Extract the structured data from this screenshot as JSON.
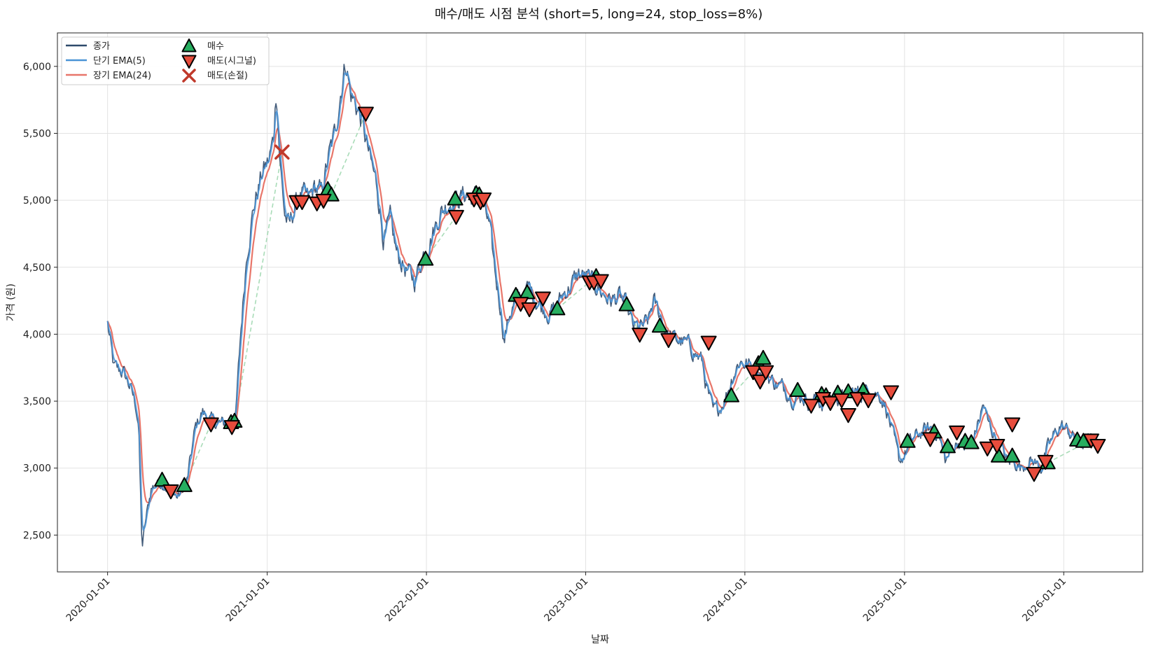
{
  "chart_data": {
    "type": "line",
    "title": "매수/매도 시점 분석 (short=5, long=24, stop_loss=8%)",
    "xlabel": "날짜",
    "ylabel": "가격 (원)",
    "x_range": [
      "2019-09-08",
      "2026-07-01"
    ],
    "ylim": [
      2225,
      6250
    ],
    "y_ticks": [
      2500,
      3000,
      3500,
      4000,
      4500,
      5000,
      5500,
      6000
    ],
    "y_tick_labels": [
      "2,500",
      "3,000",
      "3,500",
      "4,000",
      "4,500",
      "5,000",
      "5,500",
      "6,000"
    ],
    "x_ticks": [
      "2020-01-01",
      "2021-01-01",
      "2022-01-01",
      "2023-01-01",
      "2024-01-01",
      "2025-01-01",
      "2026-01-01"
    ],
    "grid": true,
    "legend_position": "top-left",
    "legend": [
      "종가",
      "단기 EMA(5)",
      "장기 EMA(24)",
      "매수",
      "매도(시그널)",
      "매도(손절)"
    ],
    "colors": {
      "close": "#2f4a6b",
      "ema_short": "#4a94d6",
      "ema_long": "#e8766a",
      "buy": "#27ae60",
      "sell_signal": "#e74c3c",
      "sell_stop": "#c0392b",
      "trade_link": "#a9dcb8"
    },
    "price_anchors": [
      [
        "2020-01-01",
        4080
      ],
      [
        "2020-01-15",
        3750
      ],
      [
        "2020-02-05",
        3720
      ],
      [
        "2020-02-20",
        3620
      ],
      [
        "2020-03-05",
        3480
      ],
      [
        "2020-03-12",
        3330
      ],
      [
        "2020-03-20",
        2400
      ],
      [
        "2020-03-28",
        2600
      ],
      [
        "2020-04-10",
        2850
      ],
      [
        "2020-05-01",
        2900
      ],
      [
        "2020-05-20",
        2850
      ],
      [
        "2020-06-10",
        2780
      ],
      [
        "2020-07-01",
        2900
      ],
      [
        "2020-07-20",
        3300
      ],
      [
        "2020-08-05",
        3420
      ],
      [
        "2020-08-25",
        3350
      ],
      [
        "2020-09-15",
        3330
      ],
      [
        "2020-10-05",
        3330
      ],
      [
        "2020-10-20",
        3350
      ],
      [
        "2020-11-01",
        4000
      ],
      [
        "2020-11-15",
        4600
      ],
      [
        "2020-12-01",
        4950
      ],
      [
        "2020-12-20",
        5200
      ],
      [
        "2021-01-05",
        5300
      ],
      [
        "2021-01-15",
        5450
      ],
      [
        "2021-01-22",
        5850
      ],
      [
        "2021-01-30",
        5300
      ],
      [
        "2021-02-10",
        4900
      ],
      [
        "2021-02-20",
        4800
      ],
      [
        "2021-03-05",
        4950
      ],
      [
        "2021-03-20",
        5050
      ],
      [
        "2021-04-05",
        5000
      ],
      [
        "2021-04-20",
        5100
      ],
      [
        "2021-05-05",
        5050
      ],
      [
        "2021-05-20",
        5300
      ],
      [
        "2021-06-05",
        5500
      ],
      [
        "2021-06-20",
        5850
      ],
      [
        "2021-07-01",
        6050
      ],
      [
        "2021-07-10",
        5800
      ],
      [
        "2021-07-25",
        5700
      ],
      [
        "2021-08-05",
        5600
      ],
      [
        "2021-08-25",
        5300
      ],
      [
        "2021-09-10",
        5100
      ],
      [
        "2021-09-25",
        4700
      ],
      [
        "2021-10-10",
        4850
      ],
      [
        "2021-10-25",
        4600
      ],
      [
        "2021-11-15",
        4480
      ],
      [
        "2021-12-05",
        4400
      ],
      [
        "2021-12-25",
        4600
      ],
      [
        "2022-01-15",
        4750
      ],
      [
        "2022-02-01",
        4900
      ],
      [
        "2022-02-20",
        4980
      ],
      [
        "2022-03-10",
        5000
      ],
      [
        "2022-04-01",
        5050
      ],
      [
        "2022-04-20",
        5020
      ],
      [
        "2022-05-10",
        5000
      ],
      [
        "2022-05-25",
        4800
      ],
      [
        "2022-06-10",
        4400
      ],
      [
        "2022-06-20",
        4200
      ],
      [
        "2022-06-28",
        3950
      ],
      [
        "2022-07-10",
        4150
      ],
      [
        "2022-07-25",
        4250
      ],
      [
        "2022-08-10",
        4300
      ],
      [
        "2022-08-25",
        4350
      ],
      [
        "2022-09-10",
        4250
      ],
      [
        "2022-09-25",
        4200
      ],
      [
        "2022-10-10",
        4150
      ],
      [
        "2022-10-25",
        4200
      ],
      [
        "2022-11-10",
        4300
      ],
      [
        "2022-11-25",
        4350
      ],
      [
        "2022-12-15",
        4450
      ],
      [
        "2023-01-05",
        4420
      ],
      [
        "2023-01-20",
        4380
      ],
      [
        "2023-02-10",
        4300
      ],
      [
        "2023-03-01",
        4250
      ],
      [
        "2023-03-20",
        4280
      ],
      [
        "2023-04-05",
        4200
      ],
      [
        "2023-04-20",
        4050
      ],
      [
        "2023-05-10",
        4050
      ],
      [
        "2023-05-25",
        4100
      ],
      [
        "2023-06-05",
        4250
      ],
      [
        "2023-06-20",
        4150
      ],
      [
        "2023-07-05",
        4000
      ],
      [
        "2023-07-20",
        3970
      ],
      [
        "2023-08-05",
        3950
      ],
      [
        "2023-08-25",
        3920
      ],
      [
        "2023-09-10",
        3850
      ],
      [
        "2023-09-25",
        3800
      ],
      [
        "2023-10-05",
        3600
      ],
      [
        "2023-10-20",
        3420
      ],
      [
        "2023-11-05",
        3450
      ],
      [
        "2023-11-20",
        3550
      ],
      [
        "2023-12-05",
        3700
      ],
      [
        "2023-12-20",
        3800
      ],
      [
        "2024-01-05",
        3780
      ],
      [
        "2024-01-20",
        3750
      ],
      [
        "2024-02-05",
        3720
      ],
      [
        "2024-02-25",
        3680
      ],
      [
        "2024-03-15",
        3620
      ],
      [
        "2024-04-01",
        3600
      ],
      [
        "2024-04-20",
        3520
      ],
      [
        "2024-05-10",
        3540
      ],
      [
        "2024-05-25",
        3500
      ],
      [
        "2024-06-10",
        3520
      ],
      [
        "2024-06-25",
        3480
      ],
      [
        "2024-07-10",
        3520
      ],
      [
        "2024-07-25",
        3540
      ],
      [
        "2024-08-10",
        3520
      ],
      [
        "2024-08-25",
        3560
      ],
      [
        "2024-09-10",
        3570
      ],
      [
        "2024-09-25",
        3560
      ],
      [
        "2024-10-10",
        3580
      ],
      [
        "2024-10-25",
        3560
      ],
      [
        "2024-11-05",
        3550
      ],
      [
        "2024-11-20",
        3450
      ],
      [
        "2024-12-05",
        3250
      ],
      [
        "2024-12-20",
        3050
      ],
      [
        "2025-01-01",
        3100
      ],
      [
        "2025-01-15",
        3200
      ],
      [
        "2025-02-01",
        3250
      ],
      [
        "2025-02-15",
        3280
      ],
      [
        "2025-03-05",
        3300
      ],
      [
        "2025-03-20",
        3250
      ],
      [
        "2025-04-05",
        3050
      ],
      [
        "2025-04-20",
        3150
      ],
      [
        "2025-05-05",
        3200
      ],
      [
        "2025-05-20",
        3150
      ],
      [
        "2025-06-05",
        3200
      ],
      [
        "2025-06-20",
        3350
      ],
      [
        "2025-07-01",
        3480
      ],
      [
        "2025-07-10",
        3350
      ],
      [
        "2025-07-25",
        3250
      ],
      [
        "2025-08-10",
        3150
      ],
      [
        "2025-08-25",
        3050
      ],
      [
        "2025-09-10",
        3050
      ],
      [
        "2025-09-25",
        3000
      ],
      [
        "2025-10-10",
        3050
      ],
      [
        "2025-10-25",
        3050
      ],
      [
        "2025-11-10",
        3000
      ],
      [
        "2025-11-25",
        3150
      ],
      [
        "2025-12-10",
        3250
      ],
      [
        "2025-12-25",
        3320
      ],
      [
        "2026-01-10",
        3280
      ],
      [
        "2026-01-25",
        3220
      ],
      [
        "2026-02-10",
        3180
      ],
      [
        "2026-02-25",
        3200
      ],
      [
        "2026-03-10",
        3210
      ]
    ],
    "buy_points": [
      [
        "2020-05-05",
        2910
      ],
      [
        "2020-06-25",
        2870
      ],
      [
        "2020-10-10",
        3340
      ],
      [
        "2020-10-18",
        3350
      ],
      [
        "2021-05-20",
        5080
      ],
      [
        "2021-05-28",
        5040
      ],
      [
        "2021-12-30",
        4560
      ],
      [
        "2022-03-08",
        5010
      ],
      [
        "2022-04-25",
        5050
      ],
      [
        "2022-05-02",
        5040
      ],
      [
        "2022-07-25",
        4290
      ],
      [
        "2022-08-20",
        4310
      ],
      [
        "2022-10-28",
        4190
      ],
      [
        "2023-01-25",
        4430
      ],
      [
        "2023-04-05",
        4220
      ],
      [
        "2023-06-20",
        4060
      ],
      [
        "2023-12-01",
        3540
      ],
      [
        "2024-02-01",
        3780
      ],
      [
        "2024-02-12",
        3820
      ],
      [
        "2024-05-01",
        3580
      ],
      [
        "2024-06-25",
        3550
      ],
      [
        "2024-07-05",
        3540
      ],
      [
        "2024-08-01",
        3560
      ],
      [
        "2024-08-25",
        3570
      ],
      [
        "2024-09-28",
        3580
      ],
      [
        "2025-01-08",
        3200
      ],
      [
        "2025-03-10",
        3270
      ],
      [
        "2025-04-10",
        3160
      ],
      [
        "2025-05-20",
        3200
      ],
      [
        "2025-06-03",
        3190
      ],
      [
        "2025-08-05",
        3090
      ],
      [
        "2025-09-05",
        3090
      ],
      [
        "2025-11-25",
        3040
      ],
      [
        "2026-02-01",
        3210
      ],
      [
        "2026-02-15",
        3200
      ]
    ],
    "sell_signal_points": [
      [
        "2020-05-25",
        2830
      ],
      [
        "2020-08-25",
        3330
      ],
      [
        "2020-10-12",
        3310
      ],
      [
        "2021-03-10",
        4990
      ],
      [
        "2021-03-22",
        4990
      ],
      [
        "2021-04-25",
        4980
      ],
      [
        "2021-05-10",
        5000
      ],
      [
        "2021-08-15",
        5650
      ],
      [
        "2022-03-10",
        4880
      ],
      [
        "2022-04-20",
        5010
      ],
      [
        "2022-05-05",
        4990
      ],
      [
        "2022-05-12",
        5010
      ],
      [
        "2022-08-05",
        4230
      ],
      [
        "2022-08-25",
        4190
      ],
      [
        "2022-09-25",
        4270
      ],
      [
        "2023-01-10",
        4390
      ],
      [
        "2023-01-20",
        4390
      ],
      [
        "2023-02-05",
        4400
      ],
      [
        "2023-05-05",
        4000
      ],
      [
        "2023-07-10",
        3960
      ],
      [
        "2023-10-10",
        3940
      ],
      [
        "2024-01-20",
        3720
      ],
      [
        "2024-02-05",
        3650
      ],
      [
        "2024-02-18",
        3720
      ],
      [
        "2024-06-01",
        3470
      ],
      [
        "2024-06-28",
        3520
      ],
      [
        "2024-07-15",
        3490
      ],
      [
        "2024-08-10",
        3510
      ],
      [
        "2024-08-25",
        3400
      ],
      [
        "2024-09-15",
        3520
      ],
      [
        "2024-10-10",
        3510
      ],
      [
        "2024-12-01",
        3570
      ],
      [
        "2025-03-01",
        3220
      ],
      [
        "2025-05-01",
        3270
      ],
      [
        "2025-07-10",
        3150
      ],
      [
        "2025-08-01",
        3170
      ],
      [
        "2025-09-05",
        3330
      ],
      [
        "2025-10-25",
        2960
      ],
      [
        "2025-11-20",
        3050
      ],
      [
        "2026-03-05",
        3210
      ],
      [
        "2026-03-20",
        3170
      ]
    ],
    "sell_stop_points": [
      [
        "2021-02-04",
        5360
      ]
    ],
    "trades": [
      [
        [
          "2020-05-05",
          2910
        ],
        [
          "2020-05-25",
          2830
        ]
      ],
      [
        [
          "2020-06-25",
          2870
        ],
        [
          "2020-08-25",
          3330
        ]
      ],
      [
        [
          "2020-10-18",
          3350
        ],
        [
          "2021-02-04",
          5360
        ]
      ],
      [
        [
          "2021-05-28",
          5040
        ],
        [
          "2021-08-15",
          5650
        ]
      ],
      [
        [
          "2021-12-30",
          4560
        ],
        [
          "2022-03-10",
          4880
        ]
      ],
      [
        [
          "2022-10-28",
          4190
        ],
        [
          "2023-01-10",
          4390
        ]
      ],
      [
        [
          "2023-04-05",
          4220
        ],
        [
          "2023-05-05",
          4000
        ]
      ],
      [
        [
          "2023-12-01",
          3540
        ],
        [
          "2024-01-20",
          3720
        ]
      ],
      [
        [
          "2025-11-25",
          3040
        ],
        [
          "2026-03-05",
          3210
        ]
      ]
    ]
  }
}
